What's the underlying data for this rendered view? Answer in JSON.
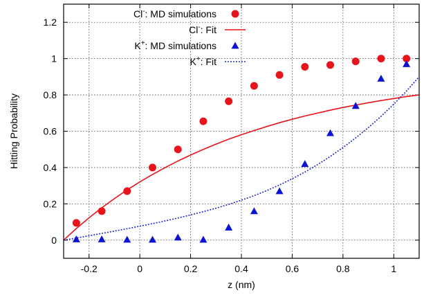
{
  "chart_data": {
    "type": "scatter",
    "xlabel": "z (nm)",
    "ylabel": "Hitting Probability",
    "xlim": [
      -0.3,
      1.1
    ],
    "ylim": [
      -0.1,
      1.3
    ],
    "x_ticks": [
      -0.2,
      0,
      0.2,
      0.4,
      0.6,
      0.8,
      1
    ],
    "y_ticks": [
      0,
      0.2,
      0.4,
      0.6,
      0.8,
      1,
      1.2
    ],
    "x_tick_labels": [
      "-0.2",
      "0",
      "0.2",
      "0.4",
      "0.6",
      "0.8",
      "1"
    ],
    "y_tick_labels": [
      "0",
      "0.2",
      "0.4",
      "0.6",
      "0.8",
      "1",
      "1.2"
    ],
    "grid": true,
    "legend_position": "top-left",
    "series": [
      {
        "name": "Cl⁻: MD simulations",
        "legend_base": "Cl",
        "legend_sup": "-",
        "legend_suffix": ": MD simulations",
        "kind": "points",
        "marker": "circle",
        "color": "#e8141b",
        "x": [
          -0.25,
          -0.15,
          -0.05,
          0.05,
          0.15,
          0.25,
          0.35,
          0.45,
          0.55,
          0.65,
          0.75,
          0.85,
          0.95,
          1.05
        ],
        "y": [
          0.095,
          0.16,
          0.27,
          0.4,
          0.5,
          0.655,
          0.765,
          0.85,
          0.91,
          0.955,
          0.965,
          0.985,
          1.0,
          1.0
        ]
      },
      {
        "name": "Cl⁻: Fit",
        "legend_base": "Cl",
        "legend_sup": "-",
        "legend_suffix": ": Fit",
        "kind": "line",
        "style": "solid",
        "color": "#e8141b",
        "x": [
          -0.3,
          -0.25,
          -0.2,
          -0.15,
          -0.1,
          -0.05,
          0,
          0.05,
          0.1,
          0.15,
          0.2,
          0.25,
          0.3,
          0.35,
          0.4,
          0.45,
          0.5,
          0.55,
          0.6,
          0.65,
          0.7,
          0.75,
          0.8,
          0.85,
          0.9,
          0.95,
          1.0,
          1.05,
          1.1
        ],
        "y": [
          0.0,
          0.064,
          0.123,
          0.178,
          0.229,
          0.277,
          0.321,
          0.362,
          0.4,
          0.436,
          0.469,
          0.5,
          0.529,
          0.556,
          0.581,
          0.604,
          0.626,
          0.647,
          0.666,
          0.684,
          0.7,
          0.716,
          0.731,
          0.744,
          0.757,
          0.769,
          0.78,
          0.791,
          0.8
        ]
      },
      {
        "name": "K⁺: MD simulations",
        "legend_base": "K",
        "legend_sup": "+",
        "legend_suffix": ": MD simulations",
        "kind": "points",
        "marker": "triangle",
        "color": "#0a14d2",
        "x": [
          -0.25,
          -0.15,
          -0.05,
          0.05,
          0.15,
          0.25,
          0.35,
          0.45,
          0.55,
          0.65,
          0.75,
          0.85,
          0.95,
          1.05
        ],
        "y": [
          0.005,
          0.005,
          0.003,
          0.003,
          0.015,
          0.003,
          0.07,
          0.16,
          0.27,
          0.42,
          0.59,
          0.74,
          0.89,
          0.97
        ]
      },
      {
        "name": "K⁺: Fit",
        "legend_base": "K",
        "legend_sup": "+",
        "legend_suffix": ": Fit",
        "kind": "line",
        "style": "dotted",
        "color": "#0a14d2",
        "x": [
          -0.3,
          -0.25,
          -0.2,
          -0.15,
          -0.1,
          -0.05,
          0,
          0.05,
          0.1,
          0.15,
          0.2,
          0.25,
          0.3,
          0.35,
          0.4,
          0.45,
          0.5,
          0.55,
          0.6,
          0.65,
          0.7,
          0.75,
          0.8,
          0.85,
          0.9,
          0.95,
          1.0,
          1.05,
          1.1
        ],
        "y": [
          0.0,
          0.012,
          0.024,
          0.037,
          0.05,
          0.063,
          0.077,
          0.091,
          0.106,
          0.122,
          0.139,
          0.157,
          0.176,
          0.197,
          0.22,
          0.245,
          0.273,
          0.304,
          0.338,
          0.375,
          0.416,
          0.461,
          0.51,
          0.563,
          0.62,
          0.682,
          0.749,
          0.821,
          0.9
        ]
      }
    ]
  }
}
